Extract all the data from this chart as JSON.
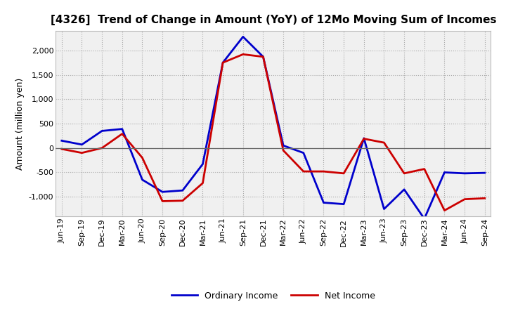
{
  "title": "[4326]  Trend of Change in Amount (YoY) of 12Mo Moving Sum of Incomes",
  "ylabel": "Amount (million yen)",
  "x_labels": [
    "Jun-19",
    "Sep-19",
    "Dec-19",
    "Mar-20",
    "Jun-20",
    "Sep-20",
    "Dec-20",
    "Mar-21",
    "Jun-21",
    "Sep-21",
    "Dec-21",
    "Mar-22",
    "Jun-22",
    "Sep-22",
    "Dec-22",
    "Mar-23",
    "Jun-23",
    "Sep-23",
    "Dec-23",
    "Mar-24",
    "Jun-24",
    "Sep-24"
  ],
  "ordinary_income": [
    150,
    70,
    350,
    390,
    -650,
    -900,
    -870,
    -330,
    1750,
    2280,
    1870,
    50,
    -100,
    -1120,
    -1150,
    200,
    -1250,
    -850,
    -1450,
    -500,
    -520,
    -510
  ],
  "net_income": [
    -20,
    -100,
    0,
    290,
    -200,
    -1090,
    -1080,
    -720,
    1750,
    1920,
    1870,
    -50,
    -480,
    -480,
    -520,
    190,
    110,
    -520,
    -430,
    -1280,
    -1050,
    -1030
  ],
  "ordinary_color": "#0000cc",
  "net_color": "#cc0000",
  "ylim_min": -1400,
  "ylim_max": 2400,
  "yticks": [
    -1000,
    -500,
    0,
    500,
    1000,
    1500,
    2000
  ],
  "legend_ordinary": "Ordinary Income",
  "legend_net": "Net Income",
  "background_color": "#ffffff",
  "plot_bg_color": "#f0f0f0",
  "grid_color": "#aaaaaa",
  "line_width": 2.0,
  "title_fontsize": 11,
  "tick_fontsize": 8,
  "ylabel_fontsize": 9,
  "legend_fontsize": 9
}
